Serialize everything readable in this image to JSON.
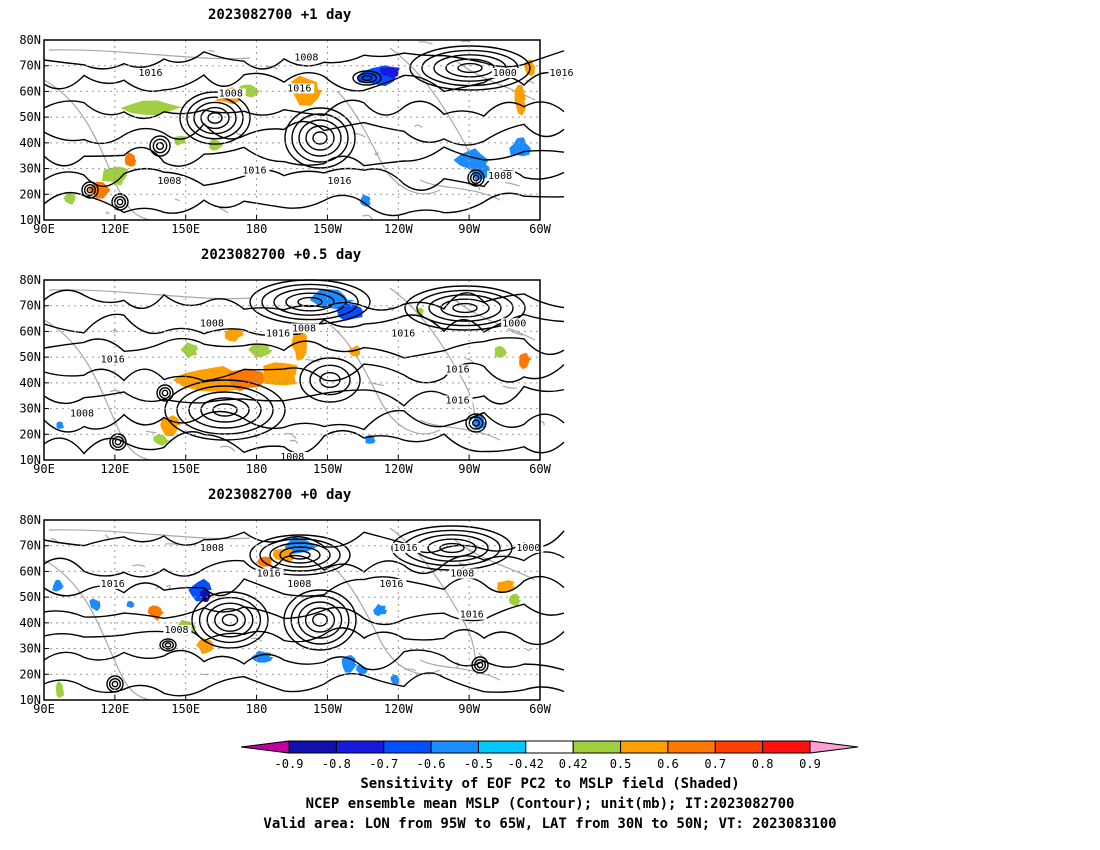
{
  "panels": [
    {
      "title": "2023082700  +1 day",
      "contour_labels": [
        {
          "text": "1008",
          "lon": 196,
          "lat": 72
        },
        {
          "text": "1016",
          "lon": 130,
          "lat": 66
        },
        {
          "text": "1016",
          "lon": 193,
          "lat": 60
        },
        {
          "text": "1008",
          "lon": 164,
          "lat": 58
        },
        {
          "text": "1000",
          "lon": 280,
          "lat": 66
        },
        {
          "text": "1016",
          "lon": 304,
          "lat": 66
        },
        {
          "text": "1016",
          "lon": 174,
          "lat": 28
        },
        {
          "text": "1016",
          "lon": 210,
          "lat": 24
        },
        {
          "text": "1008",
          "lon": 138,
          "lat": 24
        },
        {
          "text": "1008",
          "lon": 278,
          "lat": 26
        }
      ]
    },
    {
      "title": "2023082700  +0.5 day",
      "contour_labels": [
        {
          "text": "1008",
          "lon": 156,
          "lat": 62
        },
        {
          "text": "1008",
          "lon": 195,
          "lat": 60
        },
        {
          "text": "1016",
          "lon": 184,
          "lat": 58
        },
        {
          "text": "1016",
          "lon": 237,
          "lat": 58
        },
        {
          "text": "1000",
          "lon": 284,
          "lat": 62
        },
        {
          "text": "1016",
          "lon": 114,
          "lat": 48
        },
        {
          "text": "1016",
          "lon": 260,
          "lat": 44
        },
        {
          "text": "1016",
          "lon": 260,
          "lat": 32
        },
        {
          "text": "1008",
          "lon": 101,
          "lat": 27
        },
        {
          "text": "1008",
          "lon": 190,
          "lat": 10
        }
      ]
    },
    {
      "title": "2023082700  +0 day",
      "contour_labels": [
        {
          "text": "1008",
          "lon": 156,
          "lat": 68
        },
        {
          "text": "1016",
          "lon": 238,
          "lat": 68
        },
        {
          "text": "1000",
          "lon": 290,
          "lat": 68
        },
        {
          "text": "1016",
          "lon": 180,
          "lat": 58
        },
        {
          "text": "1008",
          "lon": 193,
          "lat": 54
        },
        {
          "text": "1016",
          "lon": 232,
          "lat": 54
        },
        {
          "text": "1008",
          "lon": 262,
          "lat": 58
        },
        {
          "text": "1016",
          "lon": 114,
          "lat": 54
        },
        {
          "text": "1016",
          "lon": 266,
          "lat": 42
        },
        {
          "text": "1008",
          "lon": 141,
          "lat": 36
        }
      ]
    }
  ],
  "chart_data": {
    "type": "heatmap",
    "map": {
      "lon_range": [
        90,
        300
      ],
      "lat_range": [
        10,
        80
      ],
      "xticks": [
        {
          "lon": 90,
          "label": "90E"
        },
        {
          "lon": 120,
          "label": "120E"
        },
        {
          "lon": 150,
          "label": "150E"
        },
        {
          "lon": 180,
          "label": "180"
        },
        {
          "lon": 210,
          "label": "150W"
        },
        {
          "lon": 240,
          "label": "120W"
        },
        {
          "lon": 270,
          "label": "90W"
        },
        {
          "lon": 300,
          "label": "60W"
        }
      ],
      "yticks": [
        {
          "lat": 10,
          "label": "10N"
        },
        {
          "lat": 20,
          "label": "20N"
        },
        {
          "lat": 30,
          "label": "30N"
        },
        {
          "lat": 40,
          "label": "40N"
        },
        {
          "lat": 50,
          "label": "50N"
        },
        {
          "lat": 60,
          "label": "60N"
        },
        {
          "lat": 70,
          "label": "70N"
        },
        {
          "lat": 80,
          "label": "80N"
        }
      ],
      "grid": "dotted"
    },
    "colorbar": {
      "labels": [
        "-0.9",
        "-0.8",
        "-0.7",
        "-0.6",
        "-0.5",
        "-0.42",
        "0.42",
        "0.5",
        "0.6",
        "0.7",
        "0.8",
        "0.9"
      ],
      "colors": [
        "#c000a0",
        "#1010b0",
        "#1818e0",
        "#0050ff",
        "#1a8cff",
        "#00c8ff",
        "#ffffff",
        "#a0d040",
        "#ffa000",
        "#ff7800",
        "#ff4000",
        "#ff1010",
        "#ff9ed0"
      ]
    },
    "captions": [
      "Sensitivity of EOF PC2 to MSLP field (Shaded)",
      "NCEP ensemble mean MSLP (Contour); unit(mb); IT:2023082700",
      "Valid area: LON from 95W to 65W, LAT from 30N to 50N; VT: 2023083100"
    ]
  }
}
